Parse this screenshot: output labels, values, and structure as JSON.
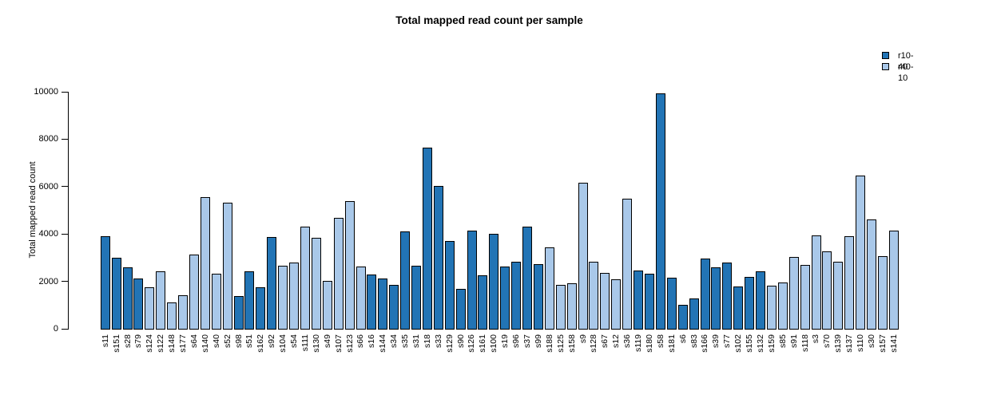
{
  "title": "Total mapped read count per sample",
  "y_axis": {
    "label": "Total mapped read count",
    "ticks": [
      0,
      2000,
      4000,
      6000,
      8000,
      10000
    ],
    "min": 0,
    "max": 10000
  },
  "legend": [
    {
      "label": "r10-40",
      "color": "#2274B5"
    },
    {
      "label": "r40-10",
      "color": "#A9C8E9"
    }
  ],
  "chart_data": {
    "type": "bar",
    "title": "Total mapped read count per sample",
    "xlabel": "",
    "ylabel": "Total mapped read count",
    "ylim": [
      0,
      10000
    ],
    "yticks": [
      0,
      2000,
      4000,
      6000,
      8000,
      10000
    ],
    "grid": false,
    "legend_position": "top-right",
    "colors": {
      "r10-40": "#2274B5",
      "r40-10": "#A9C8E9"
    },
    "bars": [
      {
        "label": "s11",
        "value": 3900,
        "group": "r10-40"
      },
      {
        "label": "s151",
        "value": 3000,
        "group": "r10-40"
      },
      {
        "label": "s28",
        "value": 2600,
        "group": "r10-40"
      },
      {
        "label": "s79",
        "value": 2130,
        "group": "r10-40"
      },
      {
        "label": "s124",
        "value": 1760,
        "group": "r40-10"
      },
      {
        "label": "s122",
        "value": 2420,
        "group": "r40-10"
      },
      {
        "label": "s148",
        "value": 1100,
        "group": "r40-10"
      },
      {
        "label": "s177",
        "value": 1430,
        "group": "r40-10"
      },
      {
        "label": "s64",
        "value": 3120,
        "group": "r40-10"
      },
      {
        "label": "s140",
        "value": 5560,
        "group": "r40-10"
      },
      {
        "label": "s40",
        "value": 2340,
        "group": "r40-10"
      },
      {
        "label": "s52",
        "value": 5320,
        "group": "r40-10"
      },
      {
        "label": "s98",
        "value": 1370,
        "group": "r10-40"
      },
      {
        "label": "s51",
        "value": 2430,
        "group": "r10-40"
      },
      {
        "label": "s162",
        "value": 1760,
        "group": "r10-40"
      },
      {
        "label": "s92",
        "value": 3860,
        "group": "r10-40"
      },
      {
        "label": "s104",
        "value": 2650,
        "group": "r40-10"
      },
      {
        "label": "s54",
        "value": 2800,
        "group": "r40-10"
      },
      {
        "label": "s111",
        "value": 4300,
        "group": "r40-10"
      },
      {
        "label": "s130",
        "value": 3830,
        "group": "r40-10"
      },
      {
        "label": "s49",
        "value": 2020,
        "group": "r40-10"
      },
      {
        "label": "s107",
        "value": 4670,
        "group": "r40-10"
      },
      {
        "label": "s123",
        "value": 5400,
        "group": "r40-10"
      },
      {
        "label": "s66",
        "value": 2630,
        "group": "r40-10"
      },
      {
        "label": "s16",
        "value": 2280,
        "group": "r10-40"
      },
      {
        "label": "s144",
        "value": 2110,
        "group": "r10-40"
      },
      {
        "label": "s34",
        "value": 1860,
        "group": "r10-40"
      },
      {
        "label": "s35",
        "value": 4100,
        "group": "r10-40"
      },
      {
        "label": "s31",
        "value": 2670,
        "group": "r10-40"
      },
      {
        "label": "s18",
        "value": 7650,
        "group": "r10-40"
      },
      {
        "label": "s33",
        "value": 6030,
        "group": "r10-40"
      },
      {
        "label": "s129",
        "value": 3720,
        "group": "r10-40"
      },
      {
        "label": "s90",
        "value": 1700,
        "group": "r10-40"
      },
      {
        "label": "s126",
        "value": 4130,
        "group": "r10-40"
      },
      {
        "label": "s161",
        "value": 2250,
        "group": "r10-40"
      },
      {
        "label": "s100",
        "value": 4000,
        "group": "r10-40"
      },
      {
        "label": "s19",
        "value": 2640,
        "group": "r10-40"
      },
      {
        "label": "s96",
        "value": 2840,
        "group": "r10-40"
      },
      {
        "label": "s37",
        "value": 4300,
        "group": "r10-40"
      },
      {
        "label": "s99",
        "value": 2740,
        "group": "r10-40"
      },
      {
        "label": "s188",
        "value": 3450,
        "group": "r40-10"
      },
      {
        "label": "s125",
        "value": 1840,
        "group": "r40-10"
      },
      {
        "label": "s158",
        "value": 1910,
        "group": "r40-10"
      },
      {
        "label": "s9",
        "value": 6150,
        "group": "r40-10"
      },
      {
        "label": "s128",
        "value": 2840,
        "group": "r40-10"
      },
      {
        "label": "s67",
        "value": 2370,
        "group": "r40-10"
      },
      {
        "label": "s12",
        "value": 2100,
        "group": "r40-10"
      },
      {
        "label": "s36",
        "value": 5480,
        "group": "r40-10"
      },
      {
        "label": "s119",
        "value": 2470,
        "group": "r10-40"
      },
      {
        "label": "s180",
        "value": 2340,
        "group": "r10-40"
      },
      {
        "label": "s58",
        "value": 9930,
        "group": "r10-40"
      },
      {
        "label": "s181",
        "value": 2140,
        "group": "r10-40"
      },
      {
        "label": "s6",
        "value": 1010,
        "group": "r10-40"
      },
      {
        "label": "s83",
        "value": 1270,
        "group": "r10-40"
      },
      {
        "label": "s166",
        "value": 2970,
        "group": "r10-40"
      },
      {
        "label": "s39",
        "value": 2600,
        "group": "r10-40"
      },
      {
        "label": "s77",
        "value": 2780,
        "group": "r10-40"
      },
      {
        "label": "s102",
        "value": 1780,
        "group": "r10-40"
      },
      {
        "label": "s155",
        "value": 2180,
        "group": "r10-40"
      },
      {
        "label": "s132",
        "value": 2410,
        "group": "r10-40"
      },
      {
        "label": "s159",
        "value": 1830,
        "group": "r40-10"
      },
      {
        "label": "s85",
        "value": 1940,
        "group": "r40-10"
      },
      {
        "label": "s91",
        "value": 3030,
        "group": "r40-10"
      },
      {
        "label": "s118",
        "value": 2700,
        "group": "r40-10"
      },
      {
        "label": "s3",
        "value": 3950,
        "group": "r40-10"
      },
      {
        "label": "s70",
        "value": 3260,
        "group": "r40-10"
      },
      {
        "label": "s139",
        "value": 2820,
        "group": "r40-10"
      },
      {
        "label": "s137",
        "value": 3890,
        "group": "r40-10"
      },
      {
        "label": "s110",
        "value": 6480,
        "group": "r40-10"
      },
      {
        "label": "s30",
        "value": 4600,
        "group": "r40-10"
      },
      {
        "label": "s157",
        "value": 3060,
        "group": "r40-10"
      },
      {
        "label": "s141",
        "value": 4150,
        "group": "r40-10"
      }
    ]
  }
}
